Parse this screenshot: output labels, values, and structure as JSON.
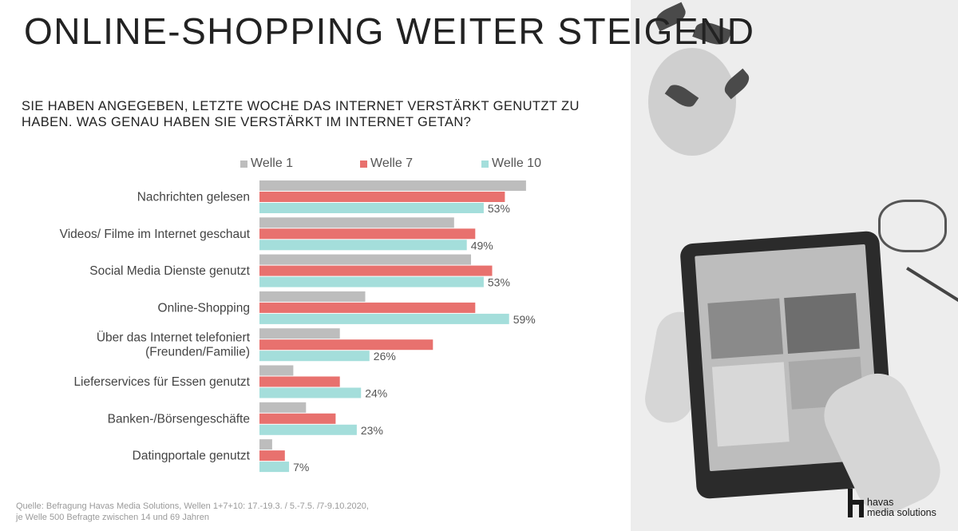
{
  "header": {
    "title": "ONLINE-SHOPPING WEITER STEIGEND",
    "subtitle": "SIE HABEN ANGEGEBEN, LETZTE WOCHE DAS INTERNET VERSTÄRKT GENUTZT ZU HABEN. WAS GENAU HABEN SIE VERSTÄRKT IM INTERNET GETAN?"
  },
  "legend": [
    {
      "label": "Welle 1",
      "color": "#bdbdbd"
    },
    {
      "label": "Welle 7",
      "color": "#e8716e"
    },
    {
      "label": "Welle 10",
      "color": "#a4dedb"
    }
  ],
  "chart_data": {
    "type": "bar",
    "orientation": "horizontal",
    "title": "",
    "xlabel": "",
    "ylabel": "",
    "xlim": [
      0,
      65
    ],
    "grid": false,
    "legend_position": "top",
    "categories": [
      [
        "Nachrichten gelesen"
      ],
      [
        "Videos/ Filme im Internet geschaut"
      ],
      [
        "Social Media Dienste genutzt"
      ],
      [
        "Online-Shopping"
      ],
      [
        "Über das Internet telefoniert",
        "(Freunden/Familie)"
      ],
      [
        "Lieferservices für Essen genutzt"
      ],
      [
        "Banken-/Börsengeschäfte"
      ],
      [
        "Datingportale genutzt"
      ]
    ],
    "series": [
      {
        "name": "Welle 1",
        "color": "#bdbdbd",
        "values": [
          63,
          46,
          50,
          25,
          19,
          8,
          11,
          3
        ]
      },
      {
        "name": "Welle 7",
        "color": "#e8716e",
        "values": [
          58,
          51,
          55,
          51,
          41,
          19,
          18,
          6
        ]
      },
      {
        "name": "Welle 10",
        "color": "#a4dedb",
        "values": [
          53,
          49,
          53,
          59,
          26,
          24,
          23,
          7
        ]
      }
    ],
    "data_labels": {
      "series": "Welle 10",
      "texts": [
        "53%",
        "49%",
        "53%",
        "59%",
        "26%",
        "24%",
        "23%",
        "7%"
      ]
    }
  },
  "footer": {
    "source_line1": "Quelle: Befragung Havas Media Solutions, Wellen 1+7+10: 17.-19.3. / 5.-7.5. /7-9.10.2020,",
    "source_line2": "je Welle 500 Befragte zwischen 14 und 69 Jahren"
  },
  "logo": {
    "line1": "havas",
    "line2": "media solutions"
  }
}
